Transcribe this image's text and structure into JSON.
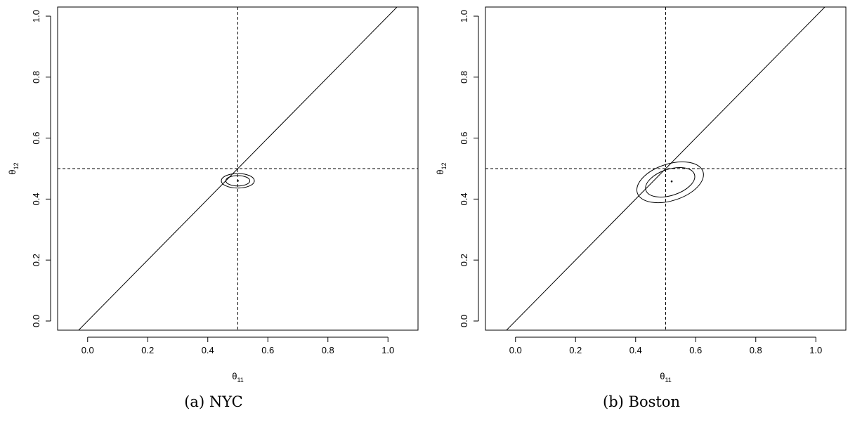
{
  "chart_data": [
    {
      "type": "scatter",
      "caption": "(a) NYC",
      "xlabel": "θ",
      "xlabel_sub": "11",
      "ylabel": "θ",
      "ylabel_sub": "12",
      "xlim": [
        -0.1,
        1.1
      ],
      "ylim": [
        -0.03,
        1.03
      ],
      "xticks": [
        0.0,
        0.2,
        0.4,
        0.6,
        0.8,
        1.0
      ],
      "yticks": [
        0.0,
        0.2,
        0.4,
        0.6,
        0.8,
        1.0
      ],
      "xtick_labels": [
        "0.0",
        "0.2",
        "0.4",
        "0.6",
        "0.8",
        "1.0"
      ],
      "ytick_labels": [
        "0.0",
        "0.2",
        "0.4",
        "0.6",
        "0.8",
        "1.0"
      ],
      "reference_lines": {
        "diagonal": "y = x",
        "vertical_dashed": 0.5,
        "horizontal_dashed": 0.5
      },
      "point": {
        "x": 0.5,
        "y": 0.46
      },
      "ellipses": [
        {
          "cx": 0.5,
          "cy": 0.46,
          "rx": 0.04,
          "ry": 0.017,
          "rotation_deg": 0
        },
        {
          "cx": 0.5,
          "cy": 0.46,
          "rx": 0.055,
          "ry": 0.024,
          "rotation_deg": 0
        }
      ],
      "grid": false
    },
    {
      "type": "scatter",
      "caption": "(b) Boston",
      "xlabel": "θ",
      "xlabel_sub": "11",
      "ylabel": "θ",
      "ylabel_sub": "12",
      "xlim": [
        -0.1,
        1.1
      ],
      "ylim": [
        -0.03,
        1.03
      ],
      "xticks": [
        0.0,
        0.2,
        0.4,
        0.6,
        0.8,
        1.0
      ],
      "yticks": [
        0.0,
        0.2,
        0.4,
        0.6,
        0.8,
        1.0
      ],
      "xtick_labels": [
        "0.0",
        "0.2",
        "0.4",
        "0.6",
        "0.8",
        "1.0"
      ],
      "ytick_labels": [
        "0.0",
        "0.2",
        "0.4",
        "0.6",
        "0.8",
        "1.0"
      ],
      "reference_lines": {
        "diagonal": "y = x",
        "vertical_dashed": 0.5,
        "horizontal_dashed": 0.5
      },
      "point": {
        "x": 0.52,
        "y": 0.458
      },
      "ellipses": [
        {
          "cx": 0.515,
          "cy": 0.455,
          "rx": 0.085,
          "ry": 0.043,
          "rotation_deg": 18
        },
        {
          "cx": 0.515,
          "cy": 0.455,
          "rx": 0.115,
          "ry": 0.06,
          "rotation_deg": 18
        }
      ],
      "grid": false
    }
  ]
}
